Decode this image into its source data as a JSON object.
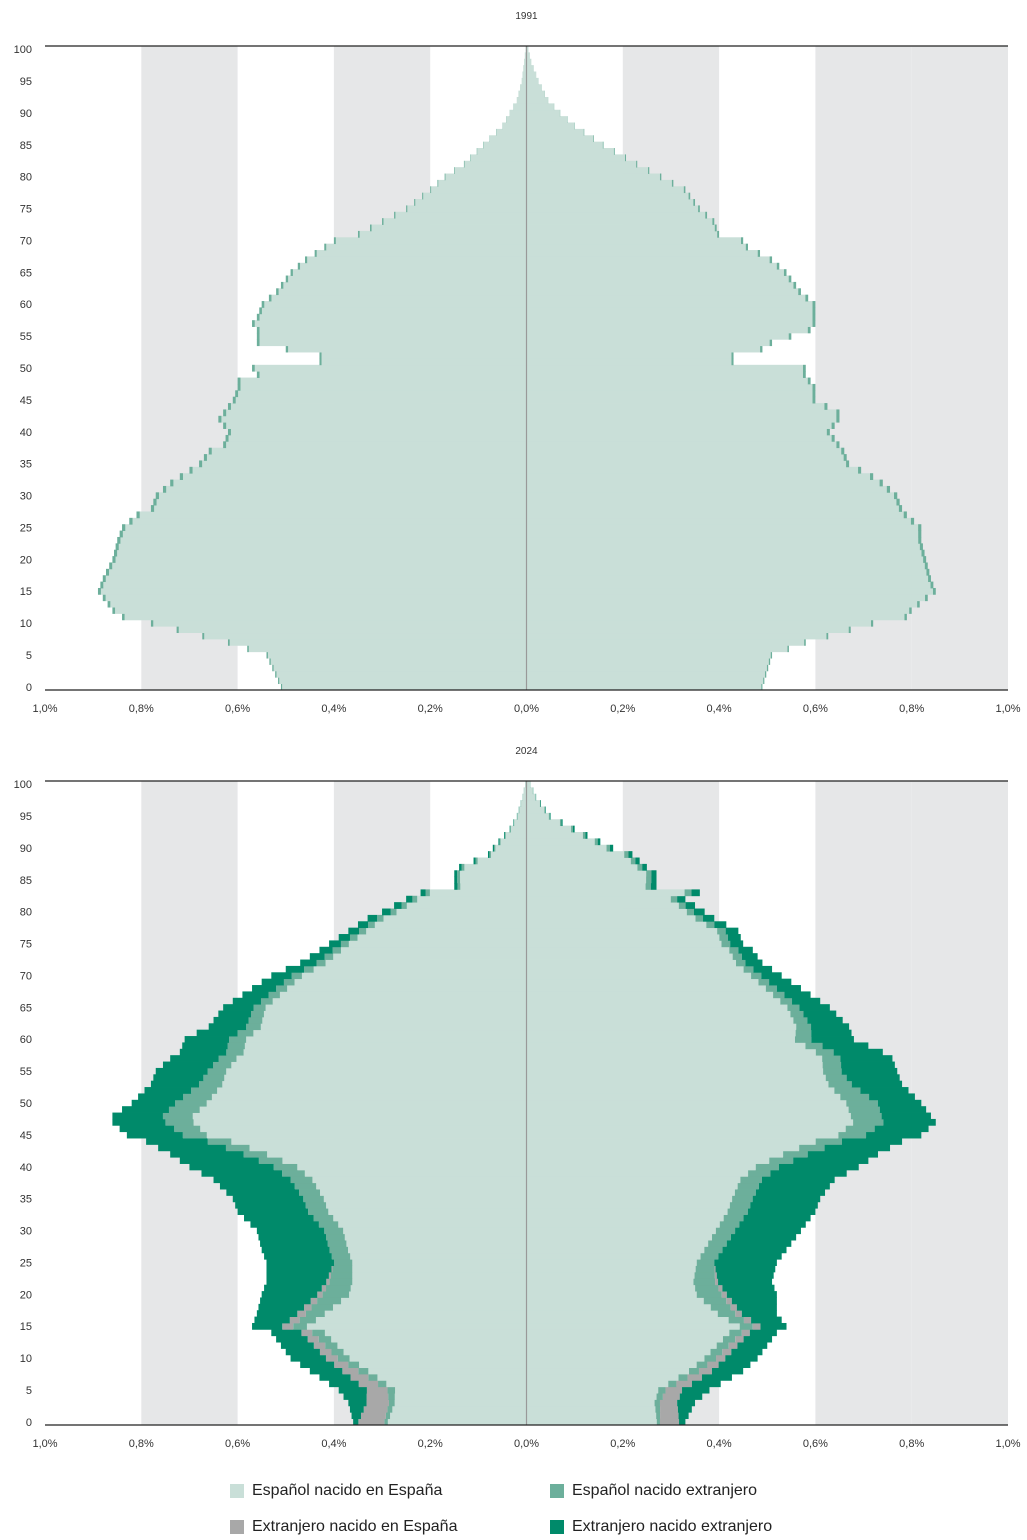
{
  "colors": {
    "esp_esp": "#c9dfd8",
    "esp_ext": "#6caf9b",
    "ext_esp": "#a8a8a8",
    "ext_ext": "#008a6a",
    "band": "#e6e7e8",
    "axis": "#222222",
    "center": "#999999"
  },
  "legend": [
    {
      "key": "esp_esp",
      "label": "Español nacido en España"
    },
    {
      "key": "esp_ext",
      "label": "Español nacido extranjero"
    },
    {
      "key": "ext_esp",
      "label": "Extranjero nacido en España"
    },
    {
      "key": "ext_ext",
      "label": "Extranjero nacido extranjero"
    }
  ],
  "chart_data": [
    {
      "type": "bar",
      "orientation": "horizontal-population-pyramid",
      "title": "1991",
      "xlim": [
        -1.0,
        1.0
      ],
      "ylim": [
        0,
        100
      ],
      "x_tick_labels": [
        "1,0%",
        "0,8%",
        "0,6%",
        "0,4%",
        "0,2%",
        "0,0%",
        "0,2%",
        "0,4%",
        "0,6%",
        "0,8%",
        "1,0%"
      ],
      "y_ticks": [
        0,
        5,
        10,
        15,
        20,
        25,
        30,
        35,
        40,
        45,
        50,
        55,
        60,
        65,
        70,
        75,
        80,
        85,
        90,
        95,
        100
      ],
      "series_keys": [
        "esp_esp",
        "esp_ext",
        "ext_esp",
        "ext_ext"
      ],
      "left_side_totals_by_age_nodes": [
        [
          0,
          0.51
        ],
        [
          5,
          0.54
        ],
        [
          7,
          0.62
        ],
        [
          10,
          0.78
        ],
        [
          11,
          0.84
        ],
        [
          12,
          0.86
        ],
        [
          15,
          0.89
        ],
        [
          17,
          0.88
        ],
        [
          20,
          0.86
        ],
        [
          23,
          0.85
        ],
        [
          25,
          0.84
        ],
        [
          27,
          0.81
        ],
        [
          28,
          0.78
        ],
        [
          30,
          0.77
        ],
        [
          32,
          0.74
        ],
        [
          33,
          0.72
        ],
        [
          35,
          0.68
        ],
        [
          37,
          0.66
        ],
        [
          38,
          0.63
        ],
        [
          40,
          0.62
        ],
        [
          42,
          0.64
        ],
        [
          43,
          0.63
        ],
        [
          45,
          0.61
        ],
        [
          47,
          0.6
        ],
        [
          48,
          0.6
        ],
        [
          49,
          0.56
        ],
        [
          50,
          0.57
        ],
        [
          51,
          0.43
        ],
        [
          52,
          0.43
        ],
        [
          53,
          0.5
        ],
        [
          54,
          0.56
        ],
        [
          56,
          0.56
        ],
        [
          57,
          0.57
        ],
        [
          58,
          0.56
        ],
        [
          60,
          0.55
        ],
        [
          62,
          0.52
        ],
        [
          65,
          0.49
        ],
        [
          67,
          0.46
        ],
        [
          69,
          0.42
        ],
        [
          70,
          0.4
        ],
        [
          71,
          0.35
        ],
        [
          73,
          0.3
        ],
        [
          75,
          0.25
        ],
        [
          78,
          0.2
        ],
        [
          80,
          0.17
        ],
        [
          82,
          0.13
        ],
        [
          85,
          0.09
        ],
        [
          88,
          0.05
        ],
        [
          90,
          0.035
        ],
        [
          92,
          0.02
        ],
        [
          95,
          0.01
        ],
        [
          98,
          0.005
        ],
        [
          100,
          0.002
        ]
      ],
      "left_side_shares_by_age_nodes": [
        [
          0,
          [
            0.995,
            0.005,
            0,
            0
          ]
        ],
        [
          40,
          [
            0.99,
            0.01,
            0,
            0
          ]
        ],
        [
          100,
          [
            0.99,
            0.01,
            0,
            0
          ]
        ]
      ],
      "right_side_totals_by_age_nodes": [
        [
          0,
          0.49
        ],
        [
          5,
          0.51
        ],
        [
          7,
          0.58
        ],
        [
          10,
          0.72
        ],
        [
          11,
          0.79
        ],
        [
          12,
          0.8
        ],
        [
          15,
          0.85
        ],
        [
          17,
          0.84
        ],
        [
          20,
          0.83
        ],
        [
          23,
          0.82
        ],
        [
          25,
          0.82
        ],
        [
          27,
          0.79
        ],
        [
          28,
          0.78
        ],
        [
          30,
          0.77
        ],
        [
          32,
          0.74
        ],
        [
          33,
          0.72
        ],
        [
          35,
          0.67
        ],
        [
          37,
          0.66
        ],
        [
          38,
          0.65
        ],
        [
          40,
          0.63
        ],
        [
          42,
          0.65
        ],
        [
          43,
          0.65
        ],
        [
          45,
          0.6
        ],
        [
          47,
          0.6
        ],
        [
          48,
          0.59
        ],
        [
          49,
          0.58
        ],
        [
          50,
          0.58
        ],
        [
          51,
          0.43
        ],
        [
          52,
          0.43
        ],
        [
          53,
          0.49
        ],
        [
          54,
          0.51
        ],
        [
          56,
          0.59
        ],
        [
          57,
          0.6
        ],
        [
          58,
          0.6
        ],
        [
          60,
          0.6
        ],
        [
          62,
          0.57
        ],
        [
          65,
          0.54
        ],
        [
          67,
          0.51
        ],
        [
          69,
          0.46
        ],
        [
          70,
          0.45
        ],
        [
          71,
          0.4
        ],
        [
          73,
          0.39
        ],
        [
          75,
          0.36
        ],
        [
          78,
          0.33
        ],
        [
          80,
          0.28
        ],
        [
          82,
          0.23
        ],
        [
          85,
          0.16
        ],
        [
          88,
          0.1
        ],
        [
          90,
          0.07
        ],
        [
          92,
          0.045
        ],
        [
          95,
          0.025
        ],
        [
          98,
          0.01
        ],
        [
          100,
          0.004
        ]
      ],
      "right_side_shares_by_age_nodes": [
        [
          0,
          [
            0.995,
            0.005,
            0,
            0
          ]
        ],
        [
          40,
          [
            0.99,
            0.01,
            0,
            0
          ]
        ],
        [
          100,
          [
            0.99,
            0.01,
            0,
            0
          ]
        ]
      ]
    },
    {
      "type": "bar",
      "orientation": "horizontal-population-pyramid",
      "title": "2024",
      "xlim": [
        -1.0,
        1.0
      ],
      "ylim": [
        0,
        100
      ],
      "x_tick_labels": [
        "1,0%",
        "0,8%",
        "0,6%",
        "0,4%",
        "0,2%",
        "0,0%",
        "0,2%",
        "0,4%",
        "0,6%",
        "0,8%",
        "1,0%"
      ],
      "y_ticks": [
        0,
        5,
        10,
        15,
        20,
        25,
        30,
        35,
        40,
        45,
        50,
        55,
        60,
        65,
        70,
        75,
        80,
        85,
        90,
        95,
        100
      ],
      "series_keys": [
        "esp_esp",
        "esp_ext",
        "ext_esp",
        "ext_ext"
      ],
      "left_side_totals_by_age_nodes": [
        [
          0,
          0.36
        ],
        [
          3,
          0.37
        ],
        [
          5,
          0.39
        ],
        [
          8,
          0.45
        ],
        [
          10,
          0.49
        ],
        [
          12,
          0.51
        ],
        [
          14,
          0.53
        ],
        [
          15,
          0.57
        ],
        [
          17,
          0.56
        ],
        [
          20,
          0.55
        ],
        [
          22,
          0.54
        ],
        [
          25,
          0.54
        ],
        [
          27,
          0.55
        ],
        [
          30,
          0.56
        ],
        [
          33,
          0.6
        ],
        [
          35,
          0.61
        ],
        [
          38,
          0.65
        ],
        [
          40,
          0.7
        ],
        [
          42,
          0.74
        ],
        [
          44,
          0.79
        ],
        [
          45,
          0.83
        ],
        [
          47,
          0.86
        ],
        [
          48,
          0.86
        ],
        [
          50,
          0.82
        ],
        [
          53,
          0.78
        ],
        [
          55,
          0.77
        ],
        [
          57,
          0.74
        ],
        [
          58,
          0.72
        ],
        [
          60,
          0.71
        ],
        [
          62,
          0.66
        ],
        [
          65,
          0.63
        ],
        [
          67,
          0.59
        ],
        [
          70,
          0.53
        ],
        [
          72,
          0.47
        ],
        [
          74,
          0.43
        ],
        [
          75,
          0.41
        ],
        [
          77,
          0.37
        ],
        [
          79,
          0.33
        ],
        [
          80,
          0.3
        ],
        [
          82,
          0.25
        ],
        [
          83,
          0.22
        ],
        [
          84,
          0.15
        ],
        [
          86,
          0.15
        ],
        [
          87,
          0.14
        ],
        [
          89,
          0.08
        ],
        [
          90,
          0.07
        ],
        [
          93,
          0.035
        ],
        [
          95,
          0.02
        ],
        [
          98,
          0.008
        ],
        [
          100,
          0.003
        ]
      ],
      "left_side_shares_by_age_nodes": [
        [
          0,
          [
            0.8,
            0.02,
            0.15,
            0.03
          ]
        ],
        [
          5,
          [
            0.7,
            0.04,
            0.11,
            0.15
          ]
        ],
        [
          10,
          [
            0.75,
            0.05,
            0.05,
            0.15
          ]
        ],
        [
          15,
          [
            0.8,
            0.05,
            0.04,
            0.11
          ]
        ],
        [
          20,
          [
            0.67,
            0.1,
            0.02,
            0.21
          ]
        ],
        [
          25,
          [
            0.67,
            0.07,
            0,
            0.26
          ]
        ],
        [
          30,
          [
            0.68,
            0.07,
            0,
            0.25
          ]
        ],
        [
          35,
          [
            0.69,
            0.07,
            0,
            0.24
          ]
        ],
        [
          40,
          [
            0.68,
            0.07,
            0,
            0.25
          ]
        ],
        [
          45,
          [
            0.8,
            0.06,
            0,
            0.14
          ]
        ],
        [
          50,
          [
            0.81,
            0.08,
            0,
            0.11
          ]
        ],
        [
          55,
          [
            0.81,
            0.05,
            0,
            0.14
          ]
        ],
        [
          60,
          [
            0.82,
            0.05,
            0,
            0.13
          ]
        ],
        [
          65,
          [
            0.86,
            0.04,
            0,
            0.1
          ]
        ],
        [
          70,
          [
            0.88,
            0.04,
            0,
            0.08
          ]
        ],
        [
          75,
          [
            0.9,
            0.04,
            0,
            0.06
          ]
        ],
        [
          80,
          [
            0.9,
            0.04,
            0,
            0.06
          ]
        ],
        [
          85,
          [
            0.92,
            0.04,
            0,
            0.04
          ]
        ],
        [
          100,
          [
            0.93,
            0.04,
            0,
            0.03
          ]
        ]
      ],
      "right_side_totals_by_age_nodes": [
        [
          0,
          0.33
        ],
        [
          3,
          0.35
        ],
        [
          5,
          0.38
        ],
        [
          8,
          0.45
        ],
        [
          10,
          0.48
        ],
        [
          12,
          0.5
        ],
        [
          14,
          0.52
        ],
        [
          15,
          0.54
        ],
        [
          17,
          0.52
        ],
        [
          20,
          0.52
        ],
        [
          22,
          0.51
        ],
        [
          25,
          0.52
        ],
        [
          27,
          0.54
        ],
        [
          30,
          0.57
        ],
        [
          33,
          0.6
        ],
        [
          35,
          0.61
        ],
        [
          38,
          0.64
        ],
        [
          40,
          0.69
        ],
        [
          42,
          0.73
        ],
        [
          44,
          0.78
        ],
        [
          45,
          0.82
        ],
        [
          47,
          0.85
        ],
        [
          48,
          0.84
        ],
        [
          50,
          0.82
        ],
        [
          53,
          0.78
        ],
        [
          55,
          0.77
        ],
        [
          57,
          0.76
        ],
        [
          58,
          0.74
        ],
        [
          60,
          0.68
        ],
        [
          62,
          0.67
        ],
        [
          65,
          0.63
        ],
        [
          67,
          0.59
        ],
        [
          70,
          0.53
        ],
        [
          72,
          0.49
        ],
        [
          74,
          0.47
        ],
        [
          75,
          0.45
        ],
        [
          77,
          0.44
        ],
        [
          79,
          0.39
        ],
        [
          80,
          0.37
        ],
        [
          82,
          0.33
        ],
        [
          83,
          0.36
        ],
        [
          84,
          0.27
        ],
        [
          86,
          0.27
        ],
        [
          87,
          0.25
        ],
        [
          89,
          0.22
        ],
        [
          90,
          0.18
        ],
        [
          93,
          0.1
        ],
        [
          95,
          0.05
        ],
        [
          98,
          0.02
        ],
        [
          100,
          0.008
        ]
      ],
      "right_side_shares_by_age_nodes": [
        [
          0,
          [
            0.82,
            0.02,
            0.12,
            0.04
          ]
        ],
        [
          5,
          [
            0.72,
            0.04,
            0.09,
            0.15
          ]
        ],
        [
          10,
          [
            0.77,
            0.05,
            0.04,
            0.14
          ]
        ],
        [
          15,
          [
            0.82,
            0.05,
            0.03,
            0.1
          ]
        ],
        [
          20,
          [
            0.68,
            0.1,
            0.02,
            0.2
          ]
        ],
        [
          25,
          [
            0.68,
            0.07,
            0,
            0.25
          ]
        ],
        [
          30,
          [
            0.69,
            0.07,
            0,
            0.24
          ]
        ],
        [
          35,
          [
            0.7,
            0.07,
            0,
            0.23
          ]
        ],
        [
          40,
          [
            0.69,
            0.07,
            0,
            0.24
          ]
        ],
        [
          45,
          [
            0.79,
            0.07,
            0,
            0.14
          ]
        ],
        [
          50,
          [
            0.81,
            0.08,
            0,
            0.11
          ]
        ],
        [
          55,
          [
            0.8,
            0.05,
            0,
            0.15
          ]
        ],
        [
          60,
          [
            0.82,
            0.05,
            0,
            0.13
          ]
        ],
        [
          65,
          [
            0.86,
            0.04,
            0,
            0.1
          ]
        ],
        [
          70,
          [
            0.88,
            0.04,
            0,
            0.08
          ]
        ],
        [
          75,
          [
            0.9,
            0.04,
            0,
            0.06
          ]
        ],
        [
          80,
          [
            0.9,
            0.04,
            0,
            0.06
          ]
        ],
        [
          85,
          [
            0.92,
            0.04,
            0,
            0.04
          ]
        ],
        [
          100,
          [
            0.93,
            0.04,
            0,
            0.03
          ]
        ]
      ]
    }
  ]
}
